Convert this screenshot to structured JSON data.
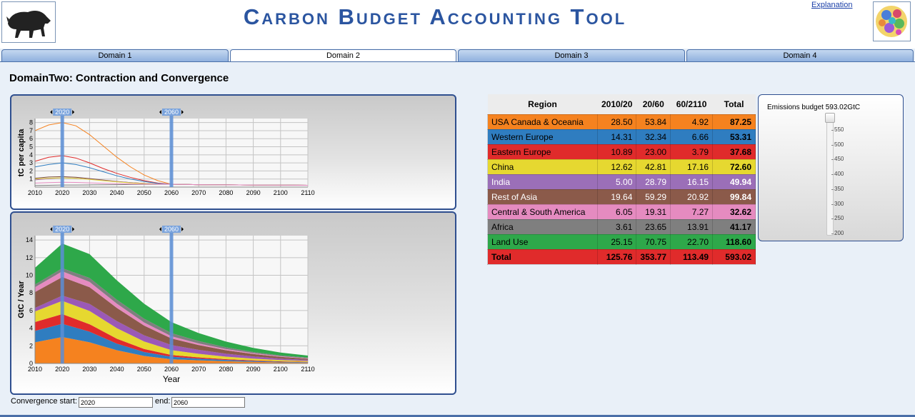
{
  "app": {
    "title": "Carbon Budget Accounting Tool",
    "explanation_link": "Explanation"
  },
  "tabs": [
    {
      "label": "Domain 1",
      "active": false
    },
    {
      "label": "Domain 2",
      "active": true
    },
    {
      "label": "Domain 3",
      "active": false
    },
    {
      "label": "Domain 4",
      "active": false
    }
  ],
  "page": {
    "heading": "DomainTwo: Contraction and Convergence"
  },
  "markers": {
    "start": "2020",
    "end": "2060"
  },
  "chart_data": [
    {
      "type": "line",
      "ylabel": "tC per capita",
      "xlabel": "",
      "x_ticks": [
        "2010",
        "2020",
        "2030",
        "2040",
        "2050",
        "2060",
        "2070",
        "2080",
        "2090",
        "2100",
        "2110"
      ],
      "y_ticks": [
        "1",
        "2",
        "3",
        "4",
        "5",
        "6",
        "7",
        "8"
      ],
      "xlim": [
        2010,
        2110
      ],
      "ylim": [
        0,
        8.5
      ],
      "grid": true,
      "x": [
        2010,
        2015,
        2020,
        2025,
        2030,
        2035,
        2040,
        2045,
        2050,
        2055,
        2060,
        2070,
        2080,
        2090,
        2100,
        2110
      ],
      "series": [
        {
          "color": "#f5821f",
          "values": [
            7.0,
            7.7,
            8.0,
            7.6,
            6.5,
            5.1,
            3.7,
            2.5,
            1.5,
            0.8,
            0.35,
            0.3,
            0.28,
            0.26,
            0.24,
            0.22
          ]
        },
        {
          "color": "#e02b2b",
          "values": [
            3.2,
            3.7,
            3.9,
            3.6,
            3.0,
            2.3,
            1.7,
            1.2,
            0.8,
            0.5,
            0.35,
            0.3,
            0.28,
            0.26,
            0.24,
            0.22
          ]
        },
        {
          "color": "#2f7dc0",
          "values": [
            2.5,
            2.8,
            3.0,
            2.8,
            2.4,
            1.9,
            1.4,
            1.0,
            0.7,
            0.45,
            0.35,
            0.3,
            0.28,
            0.26,
            0.24,
            0.22
          ]
        },
        {
          "color": "#7a4a3a",
          "values": [
            1.1,
            1.25,
            1.3,
            1.22,
            1.05,
            0.88,
            0.7,
            0.55,
            0.45,
            0.38,
            0.35,
            0.3,
            0.28,
            0.26,
            0.24,
            0.22
          ]
        },
        {
          "color": "#9b59b6",
          "values": [
            0.9,
            1.05,
            1.15,
            1.1,
            0.98,
            0.83,
            0.68,
            0.55,
            0.45,
            0.38,
            0.35,
            0.3,
            0.28,
            0.26,
            0.24,
            0.22
          ]
        },
        {
          "color": "#e6d830",
          "values": [
            1.0,
            1.1,
            1.15,
            1.08,
            0.95,
            0.8,
            0.65,
            0.52,
            0.43,
            0.37,
            0.35,
            0.3,
            0.28,
            0.26,
            0.24,
            0.22
          ]
        },
        {
          "color": "#7f7f7f",
          "values": [
            0.2,
            0.22,
            0.25,
            0.26,
            0.27,
            0.29,
            0.3,
            0.32,
            0.33,
            0.34,
            0.35,
            0.3,
            0.28,
            0.26,
            0.24,
            0.22
          ]
        },
        {
          "color": "#e58bc0",
          "values": [
            0.5,
            0.55,
            0.6,
            0.57,
            0.52,
            0.47,
            0.42,
            0.39,
            0.37,
            0.36,
            0.35,
            0.3,
            0.28,
            0.26,
            0.24,
            0.22
          ]
        }
      ]
    },
    {
      "type": "area",
      "ylabel": "GtC / Year",
      "xlabel": "Year",
      "x_ticks": [
        "2010",
        "2020",
        "2030",
        "2040",
        "2050",
        "2060",
        "2070",
        "2080",
        "2090",
        "2100",
        "2110"
      ],
      "y_ticks": [
        "0",
        "2",
        "4",
        "6",
        "8",
        "10",
        "12",
        "14"
      ],
      "xlim": [
        2010,
        2110
      ],
      "ylim": [
        0,
        14.5
      ],
      "grid": true,
      "x": [
        2010,
        2020,
        2030,
        2040,
        2050,
        2060,
        2070,
        2080,
        2090,
        2100,
        2110
      ],
      "series": [
        {
          "name": "USA Canada & Oceania",
          "color": "#f5821f",
          "values": [
            2.4,
            3.0,
            2.4,
            1.5,
            0.85,
            0.48,
            0.35,
            0.25,
            0.18,
            0.12,
            0.09
          ]
        },
        {
          "name": "Western Europe",
          "color": "#2f7dc0",
          "values": [
            1.3,
            1.5,
            1.2,
            0.75,
            0.45,
            0.28,
            0.2,
            0.14,
            0.1,
            0.07,
            0.05
          ]
        },
        {
          "name": "Eastern Europe",
          "color": "#e02b2b",
          "values": [
            1.0,
            1.1,
            0.85,
            0.55,
            0.34,
            0.2,
            0.14,
            0.1,
            0.07,
            0.05,
            0.04
          ]
        },
        {
          "name": "China",
          "color": "#e6d830",
          "values": [
            1.2,
            1.5,
            1.5,
            1.2,
            0.85,
            0.55,
            0.4,
            0.28,
            0.2,
            0.14,
            0.1
          ]
        },
        {
          "name": "India",
          "color": "#9b59b6",
          "values": [
            0.4,
            0.6,
            0.8,
            0.8,
            0.7,
            0.58,
            0.45,
            0.33,
            0.24,
            0.17,
            0.12
          ]
        },
        {
          "name": "Rest of Asia",
          "color": "#8b5a4a",
          "values": [
            1.8,
            2.1,
            1.9,
            1.5,
            1.1,
            0.75,
            0.55,
            0.4,
            0.28,
            0.2,
            0.14
          ]
        },
        {
          "name": "Central & South America",
          "color": "#e58bc0",
          "values": [
            0.55,
            0.65,
            0.6,
            0.48,
            0.36,
            0.25,
            0.18,
            0.13,
            0.09,
            0.06,
            0.05
          ]
        },
        {
          "name": "Africa",
          "color": "#7f7f7f",
          "values": [
            0.3,
            0.35,
            0.45,
            0.45,
            0.42,
            0.35,
            0.27,
            0.2,
            0.14,
            0.1,
            0.07
          ]
        },
        {
          "name": "Land Use",
          "color": "#2ea84a",
          "values": [
            1.9,
            2.8,
            2.7,
            2.2,
            1.7,
            1.25,
            0.9,
            0.65,
            0.46,
            0.33,
            0.23
          ]
        }
      ]
    }
  ],
  "table": {
    "headers": [
      "Region",
      "2010/20",
      "20/60",
      "60/2110",
      "Total"
    ],
    "rows": [
      {
        "region": "USA Canada & Oceania",
        "a": "28.50",
        "b": "53.84",
        "c": "4.92",
        "total": "87.25",
        "color": "#f5821f",
        "text": "#000"
      },
      {
        "region": "Western Europe",
        "a": "14.31",
        "b": "32.34",
        "c": "6.66",
        "total": "53.31",
        "color": "#2f7dc0",
        "text": "#000"
      },
      {
        "region": "Eastern Europe",
        "a": "10.89",
        "b": "23.00",
        "c": "3.79",
        "total": "37.68",
        "color": "#e02b2b",
        "text": "#000"
      },
      {
        "region": "China",
        "a": "12.62",
        "b": "42.81",
        "c": "17.16",
        "total": "72.60",
        "color": "#e6d830",
        "text": "#000"
      },
      {
        "region": "India",
        "a": "5.00",
        "b": "28.79",
        "c": "16.15",
        "total": "49.94",
        "color": "#9b6fb8",
        "text": "#fff"
      },
      {
        "region": "Rest of Asia",
        "a": "19.64",
        "b": "59.29",
        "c": "20.92",
        "total": "99.84",
        "color": "#8b5a4a",
        "text": "#fff"
      },
      {
        "region": "Central & South America",
        "a": "6.05",
        "b": "19.31",
        "c": "7.27",
        "total": "32.62",
        "color": "#e58bc0",
        "text": "#000"
      },
      {
        "region": "Africa",
        "a": "3.61",
        "b": "23.65",
        "c": "13.91",
        "total": "41.17",
        "color": "#7f7f7f",
        "text": "#000"
      },
      {
        "region": "Land Use",
        "a": "25.15",
        "b": "70.75",
        "c": "22.70",
        "total": "118.60",
        "color": "#2ea84a",
        "text": "#000"
      }
    ],
    "total_row": {
      "region": "Total",
      "a": "125.76",
      "b": "353.77",
      "c": "113.49",
      "total": "593.02",
      "color": "#e02b2b"
    }
  },
  "budget": {
    "label": "Emissions budget 593.02GtC",
    "ticks": [
      "550",
      "500",
      "450",
      "400",
      "350",
      "300",
      "250",
      "200"
    ],
    "value": 593.02,
    "min": 200,
    "max": 593.02
  },
  "convergence": {
    "start_label": "Convergence start:",
    "start_value": "2020",
    "end_label": "end:",
    "end_value": "2060"
  }
}
